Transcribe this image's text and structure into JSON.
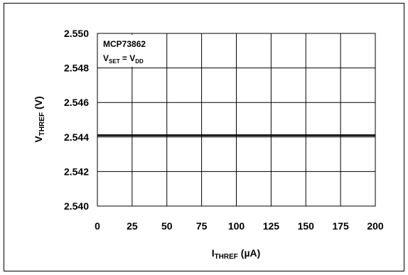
{
  "chart_data": {
    "type": "line",
    "title": "",
    "xlabel": {
      "main": "I",
      "sub": "THREF",
      "unit": " (µA)"
    },
    "ylabel": {
      "main": "V",
      "sub": "THREF",
      "unit": " (V)"
    },
    "xlim": [
      0,
      200
    ],
    "ylim": [
      2.54,
      2.55
    ],
    "x_ticks": [
      "0",
      "25",
      "50",
      "75",
      "100",
      "125",
      "150",
      "175",
      "200"
    ],
    "y_ticks": [
      "2.540",
      "2.542",
      "2.544",
      "2.546",
      "2.548",
      "2.550"
    ],
    "grid": true,
    "annotation": {
      "line1": "MCP73862",
      "line2": {
        "v1": "V",
        "s1": "SET",
        "eq": " = ",
        "v2": "V",
        "s2": "DD"
      }
    },
    "series": [
      {
        "x": [
          0,
          25,
          50,
          75,
          100,
          125,
          150,
          175,
          200
        ],
        "y": [
          2.5441,
          2.5441,
          2.5441,
          2.5441,
          2.5441,
          2.5441,
          2.5441,
          2.5441,
          2.5441
        ],
        "color": "#000000"
      }
    ]
  }
}
